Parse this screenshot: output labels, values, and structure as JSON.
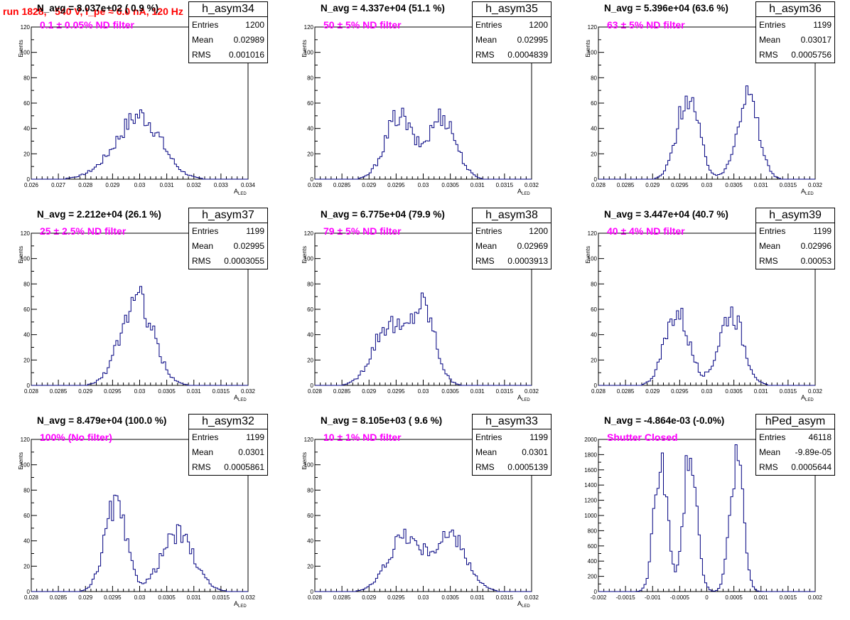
{
  "header": {
    "title": "run 1828,   540 V, I_pe ≈ 6.0 nA, 120 Hz"
  },
  "colors": {
    "title": "#ff0000",
    "annotation": "#ff00ff",
    "histogram": "#000080",
    "axis": "#000000"
  },
  "chart_data": [
    {
      "type": "bar",
      "name": "h_asym34",
      "navg": "N_avg = 8.037e+02 ( 0.9 %)",
      "label": "0.1 ± 0.05% ND filter",
      "stats": {
        "entries": "1200",
        "mean": "0.02989",
        "rms": "0.001016"
      },
      "xlim": [
        0.0255,
        0.0345
      ],
      "ylim": [
        0,
        120
      ],
      "xticks": [
        "0.026",
        "0.027",
        "0.028",
        "0.029",
        "0.03",
        "0.031",
        "0.032",
        "0.033",
        "0.034"
      ],
      "yticks": [
        "0",
        "20",
        "40",
        "60",
        "80",
        "100",
        "120"
      ],
      "ylabel": "Events",
      "xlabel": "A",
      "xlabel_sub": "LED",
      "dist": [
        [
          0.0296,
          0.001,
          600
        ],
        [
          0.0302,
          0.0008,
          600
        ]
      ],
      "peak": 50
    },
    {
      "type": "bar",
      "name": "h_asym35",
      "navg": "N_avg = 4.337e+04 (51.1 %)",
      "label": "50 ± 5% ND filter",
      "stats": {
        "entries": "1200",
        "mean": "0.02995",
        "rms": "0.0004839"
      },
      "xlim": [
        0.028,
        0.032
      ],
      "ylim": [
        0,
        120
      ],
      "xticks": [
        "0.028",
        "0.0285",
        "0.029",
        "0.0295",
        "0.03",
        "0.0305",
        "0.031",
        "0.0315",
        "0.032"
      ],
      "yticks": [
        "0",
        "20",
        "40",
        "60",
        "80",
        "100",
        "120"
      ],
      "ylabel": "Events",
      "xlabel": "A",
      "xlabel_sub": "LED",
      "dist": [
        [
          0.02955,
          0.00025,
          600
        ],
        [
          0.03035,
          0.00025,
          600
        ]
      ],
      "peak": 50
    },
    {
      "type": "bar",
      "name": "h_asym36",
      "navg": "N_avg = 5.396e+04 (63.6 %)",
      "label": "63 ± 5% ND filter",
      "stats": {
        "entries": "1199",
        "mean": "0.03017",
        "rms": "0.0005756"
      },
      "xlim": [
        0.028,
        0.032
      ],
      "ylim": [
        0,
        120
      ],
      "xticks": [
        "0.028",
        "0.0285",
        "0.029",
        "0.0295",
        "0.03",
        "0.0305",
        "0.031",
        "0.0315",
        "0.032"
      ],
      "yticks": [
        "0",
        "20",
        "40",
        "60",
        "80",
        "100",
        "120"
      ],
      "ylabel": "Events",
      "xlabel": "A",
      "xlabel_sub": "LED",
      "dist": [
        [
          0.02965,
          0.0002,
          600
        ],
        [
          0.03075,
          0.0002,
          600
        ]
      ],
      "peak": 66
    },
    {
      "type": "bar",
      "name": "h_asym37",
      "navg": "N_avg = 2.212e+04 (26.1 %)",
      "label": "25 ± 2.5% ND filter",
      "stats": {
        "entries": "1199",
        "mean": "0.02995",
        "rms": "0.0003055"
      },
      "xlim": [
        0.028,
        0.032
      ],
      "ylim": [
        0,
        120
      ],
      "xticks": [
        "0.028",
        "0.0285",
        "0.029",
        "0.0295",
        "0.03",
        "0.0305",
        "0.031",
        "0.0315",
        "0.032"
      ],
      "yticks": [
        "0",
        "20",
        "40",
        "60",
        "80",
        "100",
        "120"
      ],
      "ylabel": "Events",
      "xlabel": "A",
      "xlabel_sub": "LED",
      "dist": [
        [
          0.02995,
          0.0003,
          1200
        ]
      ],
      "peak": 68
    },
    {
      "type": "bar",
      "name": "h_asym38",
      "navg": "N_avg = 6.775e+04 (79.9 %)",
      "label": "79 ± 5% ND filter",
      "stats": {
        "entries": "1200",
        "mean": "0.02969",
        "rms": "0.0003913"
      },
      "xlim": [
        0.028,
        0.032
      ],
      "ylim": [
        0,
        120
      ],
      "xticks": [
        "0.028",
        "0.0285",
        "0.029",
        "0.0295",
        "0.03",
        "0.0305",
        "0.031",
        "0.0315",
        "0.032"
      ],
      "yticks": [
        "0",
        "20",
        "40",
        "60",
        "80",
        "100",
        "120"
      ],
      "ylabel": "Events",
      "xlabel": "A",
      "xlabel_sub": "LED",
      "dist": [
        [
          0.02935,
          0.00028,
          600
        ],
        [
          0.03,
          0.00022,
          600
        ]
      ],
      "peak": 65
    },
    {
      "type": "bar",
      "name": "h_asym39",
      "navg": "N_avg = 3.447e+04 (40.7 %)",
      "label": "40 ± 4% ND filter",
      "stats": {
        "entries": "1199",
        "mean": "0.02996",
        "rms": "0.00053"
      },
      "xlim": [
        0.028,
        0.032
      ],
      "ylim": [
        0,
        120
      ],
      "xticks": [
        "0.028",
        "0.0285",
        "0.029",
        "0.0295",
        "0.03",
        "0.0305",
        "0.031",
        "0.0315",
        "0.032"
      ],
      "yticks": [
        "0",
        "20",
        "40",
        "60",
        "80",
        "100",
        "120"
      ],
      "ylabel": "Events",
      "xlabel": "A",
      "xlabel_sub": "LED",
      "dist": [
        [
          0.02945,
          0.00022,
          600
        ],
        [
          0.03045,
          0.00022,
          600
        ]
      ],
      "peak": 58
    },
    {
      "type": "bar",
      "name": "h_asym32",
      "navg": "N_avg = 8.479e+04 (100.0 %)",
      "label": "100% (No filter)",
      "stats": {
        "entries": "1199",
        "mean": "0.0301",
        "rms": "0.0005861"
      },
      "xlim": [
        0.028,
        0.032
      ],
      "ylim": [
        0,
        120
      ],
      "xticks": [
        "0.028",
        "0.0285",
        "0.029",
        "0.0295",
        "0.03",
        "0.0305",
        "0.031",
        "0.0315",
        "0.032"
      ],
      "yticks": [
        "0",
        "20",
        "40",
        "60",
        "80",
        "100",
        "120"
      ],
      "ylabel": "Events",
      "xlabel": "A",
      "xlabel_sub": "LED",
      "dist": [
        [
          0.02955,
          0.0002,
          600
        ],
        [
          0.0307,
          0.0003,
          600
        ]
      ],
      "peak": 68
    },
    {
      "type": "bar",
      "name": "h_asym33",
      "navg": "N_avg = 8.105e+03 ( 9.6 %)",
      "label": "10 ± 1% ND filter",
      "stats": {
        "entries": "1199",
        "mean": "0.0301",
        "rms": "0.0005139"
      },
      "xlim": [
        0.028,
        0.032
      ],
      "ylim": [
        0,
        120
      ],
      "xticks": [
        "0.028",
        "0.0285",
        "0.029",
        "0.0295",
        "0.03",
        "0.0305",
        "0.031",
        "0.0315",
        "0.032"
      ],
      "yticks": [
        "0",
        "20",
        "40",
        "60",
        "80",
        "100",
        "120"
      ],
      "ylabel": "Events",
      "xlabel": "A",
      "xlabel_sub": "LED",
      "dist": [
        [
          0.02965,
          0.0003,
          600
        ],
        [
          0.0305,
          0.0003,
          600
        ]
      ],
      "peak": 44
    },
    {
      "type": "bar",
      "name": "hPed_asym",
      "navg": "N_avg = -4.864e-03 (-0.0%)",
      "label": "Shutter Closed",
      "stats": {
        "entries": "46118",
        "mean": "-9.89e-05",
        "rms": "0.0005644"
      },
      "xlim": [
        -0.002,
        0.002
      ],
      "ylim": [
        0,
        2000
      ],
      "xticks": [
        "-0.002",
        "-0.0015",
        "-0.001",
        "-0.0005",
        "0",
        "0.0005",
        "0.001",
        "0.0015",
        "0.002"
      ],
      "yticks": [
        "0",
        "200",
        "400",
        "600",
        "800",
        "1000",
        "1200",
        "1400",
        "1600",
        "1800",
        "2000"
      ],
      "ylabel": "",
      "xlabel": "",
      "xlabel_sub": "",
      "dist": [
        [
          -0.00085,
          0.00012,
          15000
        ],
        [
          -0.0003,
          0.00012,
          16000
        ],
        [
          0.00055,
          0.00012,
          15000
        ]
      ],
      "peak": 1900
    }
  ]
}
